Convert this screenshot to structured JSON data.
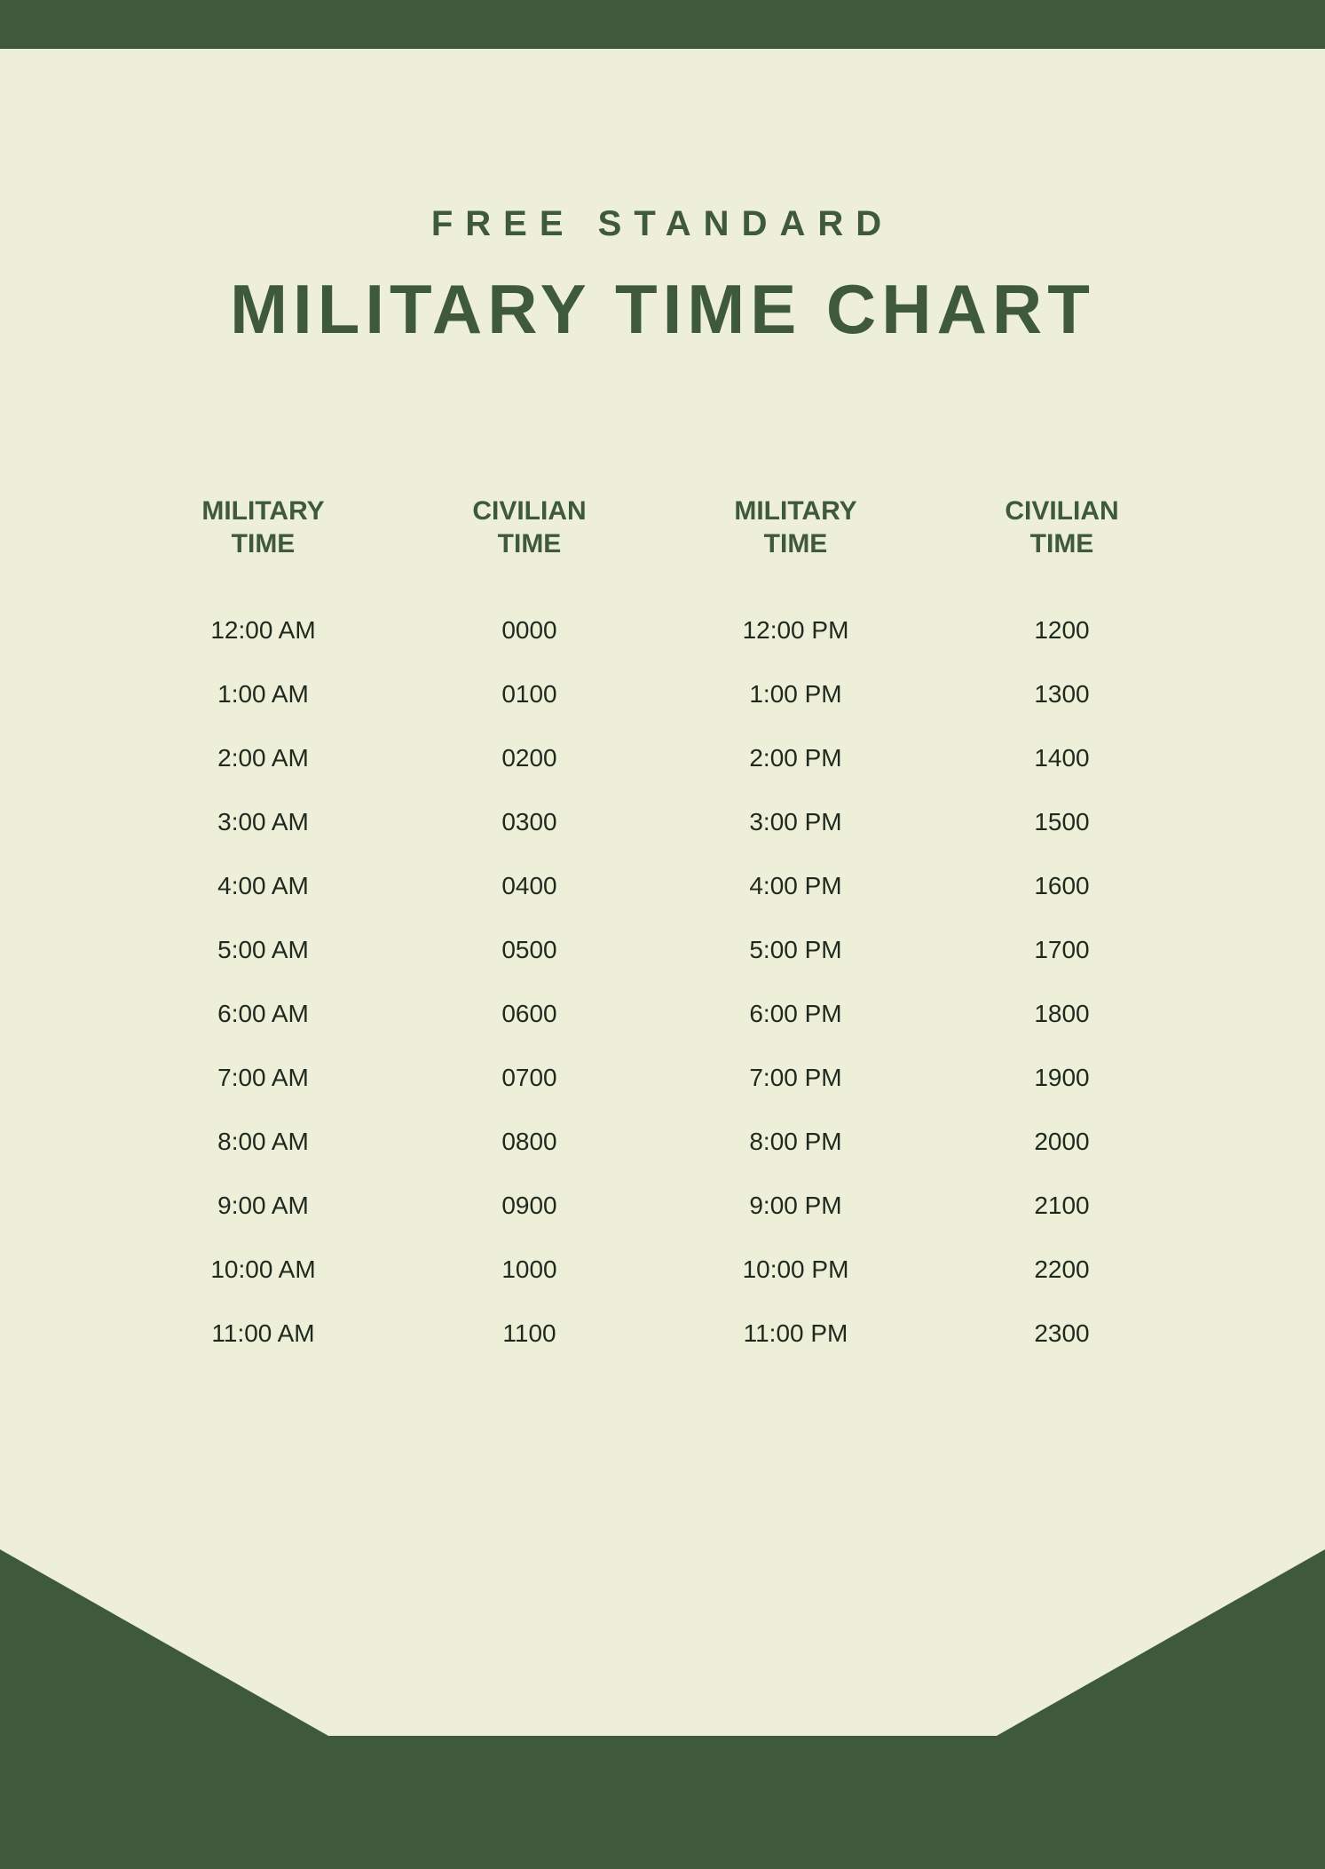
{
  "colors": {
    "background": "#edefd8",
    "accent": "#3e5a3a",
    "heading": "#3e5a3a",
    "body_text": "#1f2a1f"
  },
  "typography": {
    "subtitle_fontsize": 40,
    "subtitle_letter_spacing": 14,
    "title_fontsize": 78,
    "title_letter_spacing": 6,
    "header_fontsize": 30,
    "cell_fontsize": 28
  },
  "header": {
    "subtitle": "FREE STANDARD",
    "title": "MILITARY TIME CHART"
  },
  "table": {
    "type": "table",
    "columns": [
      {
        "line1": "MILITARY",
        "line2": "TIME"
      },
      {
        "line1": "CIVILIAN",
        "line2": "TIME"
      },
      {
        "line1": "MILITARY",
        "line2": "TIME"
      },
      {
        "line1": "CIVILIAN",
        "line2": "TIME"
      }
    ],
    "rows": [
      [
        "12:00 AM",
        "0000",
        "12:00 PM",
        "1200"
      ],
      [
        "1:00 AM",
        "0100",
        "1:00 PM",
        "1300"
      ],
      [
        "2:00 AM",
        "0200",
        "2:00 PM",
        "1400"
      ],
      [
        "3:00 AM",
        "0300",
        "3:00 PM",
        "1500"
      ],
      [
        "4:00 AM",
        "0400",
        "4:00 PM",
        "1600"
      ],
      [
        "5:00 AM",
        "0500",
        "5:00 PM",
        "1700"
      ],
      [
        "6:00 AM",
        "0600",
        "6:00 PM",
        "1800"
      ],
      [
        "7:00 AM",
        "0700",
        "7:00 PM",
        "1900"
      ],
      [
        "8:00 AM",
        "0800",
        "8:00 PM",
        "2000"
      ],
      [
        "9:00 AM",
        "0900",
        "9:00 PM",
        "2100"
      ],
      [
        "10:00 AM",
        "1000",
        "10:00 PM",
        "2200"
      ],
      [
        "11:00 AM",
        "1100",
        "11:00 PM",
        "2300"
      ]
    ]
  }
}
